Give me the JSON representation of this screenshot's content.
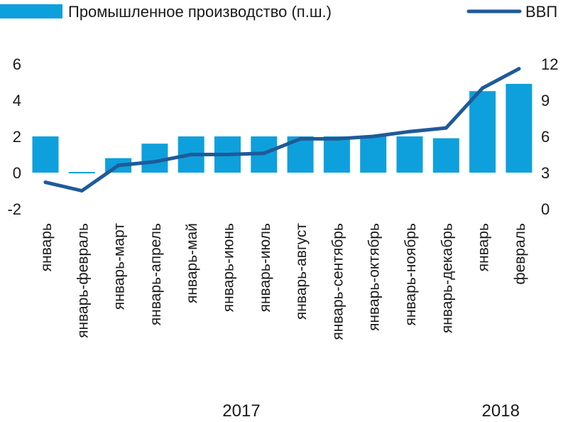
{
  "chart_data": {
    "type": "bar+line",
    "categories": [
      "январь",
      "январь-февраль",
      "январь-март",
      "январь-апрель",
      "январь-май",
      "январь-июнь",
      "январь-июль",
      "январь-август",
      "январь-сентябрь",
      "январь-октябрь",
      "январь-ноябрь",
      "январь-декабрь",
      "январь",
      "февраль"
    ],
    "groups": [
      {
        "label": "2017",
        "from": 0,
        "to": 11
      },
      {
        "label": "2018",
        "from": 12,
        "to": 13
      }
    ],
    "series": [
      {
        "name": "Промышленное производство (п.ш.)",
        "type": "bar",
        "axis": "left",
        "color": "#0ea0dc",
        "values": [
          2.0,
          0.0,
          0.8,
          1.6,
          2.0,
          2.0,
          2.0,
          2.0,
          2.0,
          2.0,
          2.0,
          1.9,
          4.5,
          4.9
        ]
      },
      {
        "name": "ВВП",
        "type": "line",
        "axis": "right",
        "color": "#1f5a99",
        "values": [
          2.2,
          1.5,
          3.6,
          3.9,
          4.5,
          4.5,
          4.6,
          5.8,
          5.8,
          6.0,
          6.4,
          6.7,
          10.0,
          11.6
        ]
      }
    ],
    "y_left": {
      "ticks": [
        "-2",
        "0",
        "2",
        "4",
        "6"
      ],
      "lim": [
        -2,
        6.6
      ]
    },
    "y_right": {
      "ticks": [
        "0",
        "3",
        "6",
        "9",
        "12"
      ],
      "lim": [
        0,
        12.9
      ]
    },
    "legend": {
      "position": "top",
      "bar_label": "Промышленное производство (п.ш.)",
      "line_label": "ВВП"
    },
    "grid": false
  }
}
